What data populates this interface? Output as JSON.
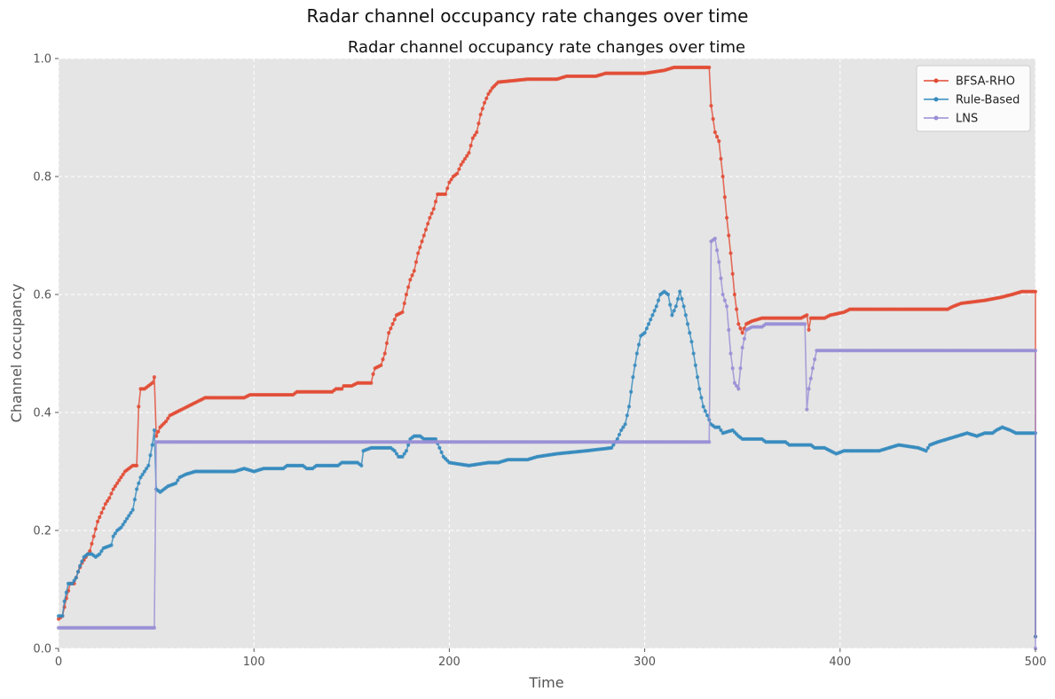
{
  "figure": {
    "suptitle": "Radar channel occupancy rate changes over time"
  },
  "chart_data": {
    "type": "line",
    "title": "Radar channel occupancy rate changes over time",
    "xlabel": "Time",
    "ylabel": "Channel occupancy",
    "xlim": [
      0,
      500
    ],
    "ylim": [
      0,
      1.0
    ],
    "xticks": [
      "0",
      "100",
      "200",
      "300",
      "400",
      "500"
    ],
    "yticks": [
      "0.0",
      "0.2",
      "0.4",
      "0.6",
      "0.8",
      "1.0"
    ],
    "grid": true,
    "legend_position": "top-right",
    "series": [
      {
        "name": "BFSA-RHO",
        "color": "#E24A33",
        "points": [
          [
            0,
            0.05
          ],
          [
            2,
            0.055
          ],
          [
            4,
            0.085
          ],
          [
            6,
            0.11
          ],
          [
            8,
            0.11
          ],
          [
            10,
            0.13
          ],
          [
            12,
            0.145
          ],
          [
            14,
            0.155
          ],
          [
            16,
            0.165
          ],
          [
            18,
            0.19
          ],
          [
            20,
            0.215
          ],
          [
            22,
            0.23
          ],
          [
            24,
            0.245
          ],
          [
            26,
            0.255
          ],
          [
            28,
            0.27
          ],
          [
            30,
            0.28
          ],
          [
            32,
            0.29
          ],
          [
            34,
            0.3
          ],
          [
            36,
            0.305
          ],
          [
            38,
            0.31
          ],
          [
            40,
            0.31
          ],
          [
            41,
            0.41
          ],
          [
            42,
            0.44
          ],
          [
            44,
            0.44
          ],
          [
            46,
            0.445
          ],
          [
            48,
            0.45
          ],
          [
            49,
            0.46
          ],
          [
            50,
            0.36
          ],
          [
            52,
            0.375
          ],
          [
            55,
            0.385
          ],
          [
            57,
            0.395
          ],
          [
            60,
            0.4
          ],
          [
            63,
            0.405
          ],
          [
            66,
            0.41
          ],
          [
            69,
            0.415
          ],
          [
            72,
            0.42
          ],
          [
            75,
            0.425
          ],
          [
            90,
            0.425
          ],
          [
            95,
            0.425
          ],
          [
            98,
            0.43
          ],
          [
            120,
            0.43
          ],
          [
            122,
            0.435
          ],
          [
            140,
            0.435
          ],
          [
            142,
            0.44
          ],
          [
            145,
            0.44
          ],
          [
            146,
            0.445
          ],
          [
            150,
            0.445
          ],
          [
            153,
            0.45
          ],
          [
            160,
            0.45
          ],
          [
            161,
            0.465
          ],
          [
            162,
            0.475
          ],
          [
            165,
            0.48
          ],
          [
            167,
            0.5
          ],
          [
            169,
            0.535
          ],
          [
            171,
            0.55
          ],
          [
            173,
            0.565
          ],
          [
            176,
            0.57
          ],
          [
            178,
            0.6
          ],
          [
            180,
            0.625
          ],
          [
            182,
            0.64
          ],
          [
            184,
            0.67
          ],
          [
            186,
            0.69
          ],
          [
            188,
            0.71
          ],
          [
            190,
            0.73
          ],
          [
            192,
            0.745
          ],
          [
            194,
            0.77
          ],
          [
            198,
            0.77
          ],
          [
            200,
            0.79
          ],
          [
            202,
            0.8
          ],
          [
            204,
            0.805
          ],
          [
            206,
            0.82
          ],
          [
            208,
            0.83
          ],
          [
            210,
            0.84
          ],
          [
            212,
            0.865
          ],
          [
            214,
            0.875
          ],
          [
            216,
            0.905
          ],
          [
            218,
            0.925
          ],
          [
            220,
            0.94
          ],
          [
            222,
            0.95
          ],
          [
            225,
            0.96
          ],
          [
            240,
            0.965
          ],
          [
            255,
            0.965
          ],
          [
            260,
            0.97
          ],
          [
            275,
            0.97
          ],
          [
            280,
            0.975
          ],
          [
            300,
            0.975
          ],
          [
            310,
            0.98
          ],
          [
            315,
            0.985
          ],
          [
            333,
            0.985
          ],
          [
            334,
            0.92
          ],
          [
            336,
            0.875
          ],
          [
            338,
            0.86
          ],
          [
            340,
            0.8
          ],
          [
            342,
            0.73
          ],
          [
            344,
            0.67
          ],
          [
            346,
            0.6
          ],
          [
            348,
            0.55
          ],
          [
            350,
            0.535
          ],
          [
            352,
            0.55
          ],
          [
            355,
            0.555
          ],
          [
            360,
            0.56
          ],
          [
            380,
            0.56
          ],
          [
            383,
            0.565
          ],
          [
            384,
            0.54
          ],
          [
            385,
            0.56
          ],
          [
            392,
            0.56
          ],
          [
            395,
            0.565
          ],
          [
            402,
            0.57
          ],
          [
            405,
            0.575
          ],
          [
            455,
            0.575
          ],
          [
            458,
            0.58
          ],
          [
            462,
            0.585
          ],
          [
            474,
            0.59
          ],
          [
            482,
            0.595
          ],
          [
            488,
            0.6
          ],
          [
            493,
            0.605
          ],
          [
            500,
            0.605
          ],
          [
            500,
            0.02
          ]
        ]
      },
      {
        "name": "Rule-Based",
        "color": "#348ABD",
        "points": [
          [
            0,
            0.055
          ],
          [
            2,
            0.055
          ],
          [
            3,
            0.08
          ],
          [
            5,
            0.11
          ],
          [
            7,
            0.11
          ],
          [
            9,
            0.12
          ],
          [
            11,
            0.14
          ],
          [
            13,
            0.155
          ],
          [
            15,
            0.16
          ],
          [
            17,
            0.16
          ],
          [
            19,
            0.155
          ],
          [
            21,
            0.16
          ],
          [
            23,
            0.17
          ],
          [
            27,
            0.175
          ],
          [
            28,
            0.19
          ],
          [
            30,
            0.2
          ],
          [
            32,
            0.205
          ],
          [
            34,
            0.215
          ],
          [
            36,
            0.225
          ],
          [
            38,
            0.235
          ],
          [
            40,
            0.27
          ],
          [
            42,
            0.29
          ],
          [
            44,
            0.3
          ],
          [
            46,
            0.31
          ],
          [
            48,
            0.345
          ],
          [
            49,
            0.37
          ],
          [
            50,
            0.27
          ],
          [
            52,
            0.265
          ],
          [
            56,
            0.275
          ],
          [
            60,
            0.28
          ],
          [
            62,
            0.29
          ],
          [
            65,
            0.295
          ],
          [
            70,
            0.3
          ],
          [
            90,
            0.3
          ],
          [
            95,
            0.305
          ],
          [
            100,
            0.3
          ],
          [
            105,
            0.305
          ],
          [
            115,
            0.305
          ],
          [
            117,
            0.31
          ],
          [
            125,
            0.31
          ],
          [
            127,
            0.305
          ],
          [
            130,
            0.305
          ],
          [
            132,
            0.31
          ],
          [
            143,
            0.31
          ],
          [
            145,
            0.315
          ],
          [
            153,
            0.315
          ],
          [
            155,
            0.31
          ],
          [
            156,
            0.335
          ],
          [
            160,
            0.34
          ],
          [
            170,
            0.34
          ],
          [
            172,
            0.335
          ],
          [
            174,
            0.325
          ],
          [
            176,
            0.325
          ],
          [
            178,
            0.335
          ],
          [
            180,
            0.355
          ],
          [
            182,
            0.36
          ],
          [
            185,
            0.36
          ],
          [
            187,
            0.355
          ],
          [
            193,
            0.355
          ],
          [
            195,
            0.34
          ],
          [
            197,
            0.325
          ],
          [
            200,
            0.315
          ],
          [
            210,
            0.31
          ],
          [
            220,
            0.315
          ],
          [
            225,
            0.315
          ],
          [
            230,
            0.32
          ],
          [
            240,
            0.32
          ],
          [
            245,
            0.325
          ],
          [
            255,
            0.33
          ],
          [
            270,
            0.335
          ],
          [
            283,
            0.34
          ],
          [
            286,
            0.355
          ],
          [
            288,
            0.37
          ],
          [
            290,
            0.38
          ],
          [
            292,
            0.41
          ],
          [
            294,
            0.46
          ],
          [
            296,
            0.5
          ],
          [
            298,
            0.53
          ],
          [
            300,
            0.535
          ],
          [
            302,
            0.55
          ],
          [
            304,
            0.565
          ],
          [
            306,
            0.58
          ],
          [
            308,
            0.6
          ],
          [
            310,
            0.605
          ],
          [
            312,
            0.6
          ],
          [
            314,
            0.565
          ],
          [
            316,
            0.58
          ],
          [
            318,
            0.605
          ],
          [
            320,
            0.58
          ],
          [
            322,
            0.55
          ],
          [
            324,
            0.52
          ],
          [
            326,
            0.48
          ],
          [
            328,
            0.44
          ],
          [
            330,
            0.41
          ],
          [
            332,
            0.395
          ],
          [
            334,
            0.38
          ],
          [
            336,
            0.375
          ],
          [
            338,
            0.375
          ],
          [
            340,
            0.365
          ],
          [
            345,
            0.37
          ],
          [
            348,
            0.36
          ],
          [
            350,
            0.355
          ],
          [
            360,
            0.355
          ],
          [
            362,
            0.35
          ],
          [
            372,
            0.35
          ],
          [
            374,
            0.345
          ],
          [
            385,
            0.345
          ],
          [
            387,
            0.34
          ],
          [
            392,
            0.34
          ],
          [
            395,
            0.335
          ],
          [
            398,
            0.33
          ],
          [
            402,
            0.335
          ],
          [
            420,
            0.335
          ],
          [
            425,
            0.34
          ],
          [
            430,
            0.345
          ],
          [
            440,
            0.34
          ],
          [
            444,
            0.335
          ],
          [
            446,
            0.345
          ],
          [
            450,
            0.35
          ],
          [
            455,
            0.355
          ],
          [
            460,
            0.36
          ],
          [
            465,
            0.365
          ],
          [
            470,
            0.36
          ],
          [
            474,
            0.365
          ],
          [
            478,
            0.365
          ],
          [
            480,
            0.37
          ],
          [
            483,
            0.375
          ],
          [
            487,
            0.37
          ],
          [
            490,
            0.365
          ],
          [
            500,
            0.365
          ],
          [
            500,
            0.02
          ]
        ]
      },
      {
        "name": "LNS",
        "color": "#988ED5",
        "points": [
          [
            0,
            0.035
          ],
          [
            49,
            0.035
          ],
          [
            50,
            0.35
          ],
          [
            333,
            0.35
          ],
          [
            334,
            0.69
          ],
          [
            336,
            0.695
          ],
          [
            338,
            0.655
          ],
          [
            340,
            0.6
          ],
          [
            342,
            0.58
          ],
          [
            344,
            0.5
          ],
          [
            346,
            0.45
          ],
          [
            348,
            0.44
          ],
          [
            350,
            0.51
          ],
          [
            352,
            0.54
          ],
          [
            355,
            0.545
          ],
          [
            360,
            0.545
          ],
          [
            362,
            0.55
          ],
          [
            382,
            0.55
          ],
          [
            383,
            0.405
          ],
          [
            384,
            0.44
          ],
          [
            386,
            0.475
          ],
          [
            388,
            0.505
          ],
          [
            500,
            0.505
          ],
          [
            500,
            0.0
          ]
        ]
      }
    ]
  }
}
